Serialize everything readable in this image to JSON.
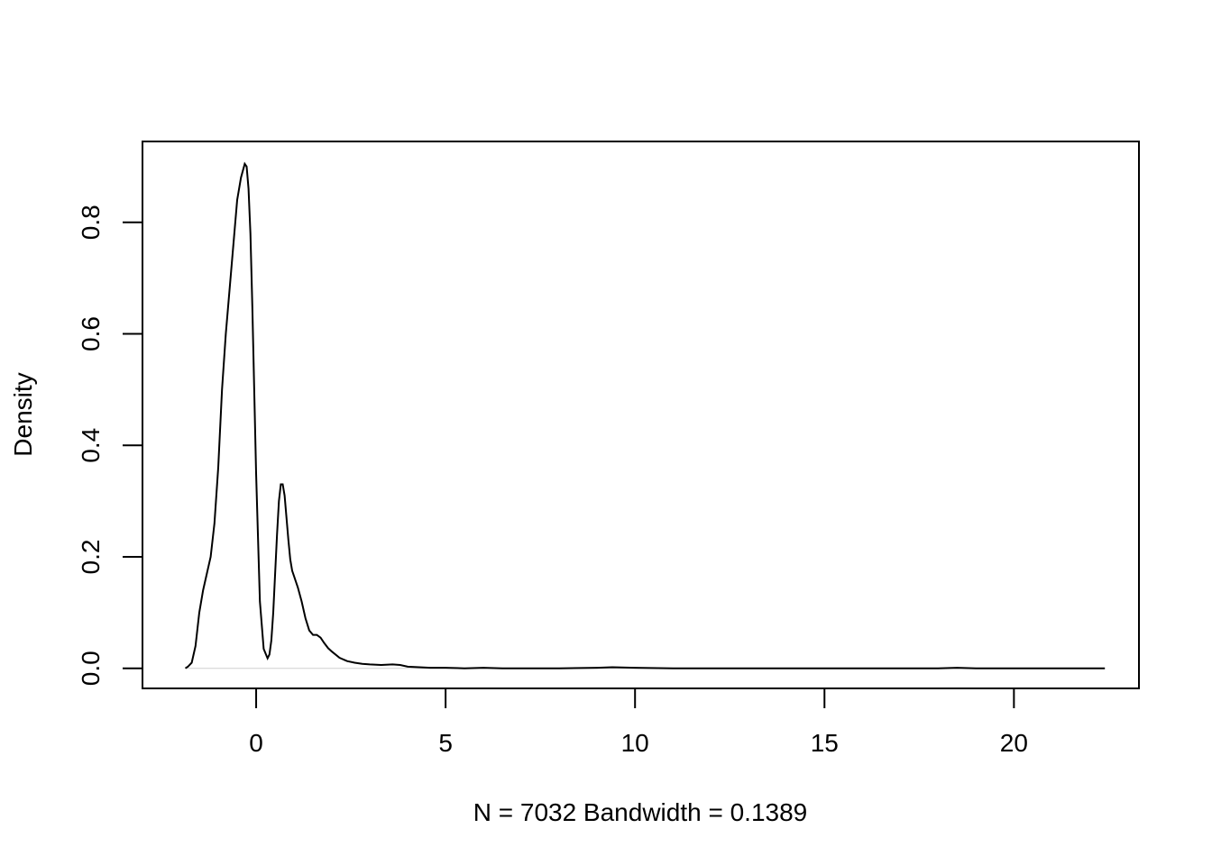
{
  "chart_data": {
    "type": "line",
    "title": "",
    "xlabel": "N = 7032   Bandwidth = 0.1389",
    "ylabel": "Density",
    "xlim": [
      -3,
      23.3
    ],
    "ylim": [
      -0.036,
      0.945
    ],
    "xticks": [
      0,
      5,
      10,
      15,
      20
    ],
    "xtick_labels": [
      "0",
      "5",
      "10",
      "15",
      "20"
    ],
    "yticks": [
      0.0,
      0.2,
      0.4,
      0.6,
      0.8
    ],
    "ytick_labels": [
      "0.0",
      "0.2",
      "0.4",
      "0.6",
      "0.8"
    ],
    "grid": false,
    "baseline_y": 0,
    "series": [
      {
        "x": [
          -1.87,
          -1.8,
          -1.7,
          -1.6,
          -1.5,
          -1.4,
          -1.3,
          -1.2,
          -1.1,
          -1.0,
          -0.9,
          -0.8,
          -0.7,
          -0.6,
          -0.5,
          -0.4,
          -0.3,
          -0.25,
          -0.2,
          -0.15,
          -0.1,
          -0.05,
          0.0,
          0.1,
          0.2,
          0.3,
          0.35,
          0.4,
          0.45,
          0.5,
          0.55,
          0.6,
          0.65,
          0.7,
          0.75,
          0.8,
          0.85,
          0.9,
          0.95,
          1.0,
          1.05,
          1.1,
          1.2,
          1.3,
          1.4,
          1.5,
          1.6,
          1.7,
          1.8,
          1.9,
          2.0,
          2.2,
          2.4,
          2.6,
          2.8,
          3.0,
          3.3,
          3.6,
          3.8,
          4.0,
          4.3,
          4.6,
          5.0,
          5.5,
          6.0,
          6.5,
          7.0,
          8.0,
          9.0,
          9.4,
          10.0,
          11.0,
          12.0,
          13.0,
          14.0,
          15.0,
          16.0,
          17.0,
          18.0,
          18.5,
          19.0,
          20.0,
          21.0,
          22.0,
          22.4
        ],
        "y": [
          0.0,
          0.003,
          0.01,
          0.04,
          0.1,
          0.14,
          0.17,
          0.2,
          0.26,
          0.36,
          0.5,
          0.6,
          0.68,
          0.76,
          0.84,
          0.88,
          0.905,
          0.9,
          0.86,
          0.78,
          0.65,
          0.5,
          0.35,
          0.12,
          0.035,
          0.018,
          0.025,
          0.05,
          0.1,
          0.17,
          0.24,
          0.3,
          0.33,
          0.33,
          0.31,
          0.27,
          0.23,
          0.195,
          0.175,
          0.165,
          0.155,
          0.145,
          0.12,
          0.09,
          0.068,
          0.06,
          0.06,
          0.055,
          0.045,
          0.036,
          0.03,
          0.019,
          0.013,
          0.01,
          0.008,
          0.007,
          0.006,
          0.007,
          0.006,
          0.003,
          0.002,
          0.001,
          0.001,
          0.0,
          0.001,
          0.0,
          0.0,
          0.0,
          0.001,
          0.002,
          0.001,
          0.0,
          0.0,
          0.0,
          0.0,
          0.0,
          0.0,
          0.0,
          0.0,
          0.001,
          0.0,
          0.0,
          0.0,
          0.0,
          0.0
        ]
      }
    ]
  }
}
